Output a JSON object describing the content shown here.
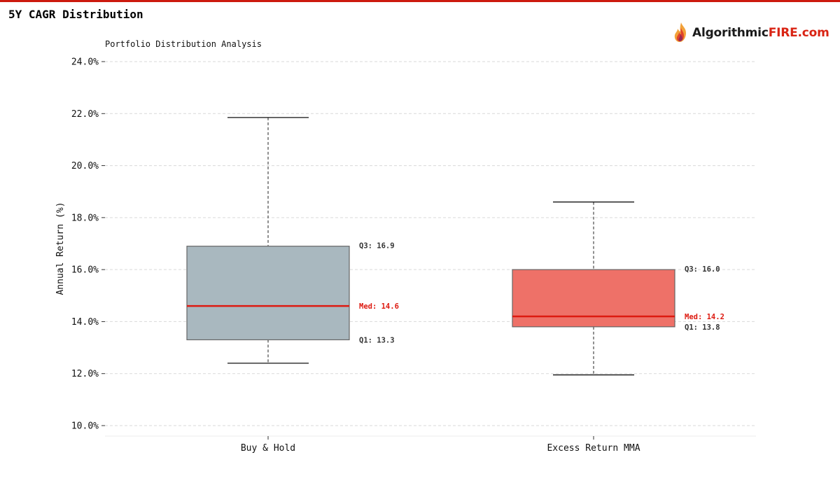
{
  "page": {
    "title": "5Y CAGR Distribution",
    "logo_main": "Algorithmic",
    "logo_accent": "FIRE.com",
    "accent_color": "#cc1a0e"
  },
  "chart_data": {
    "type": "box",
    "title": "Portfolio Distribution Analysis",
    "xlabel": "",
    "ylabel": "Annual Return (%)",
    "ylim": [
      9.6,
      24.0
    ],
    "yticks": [
      10,
      12,
      14,
      16,
      18,
      20,
      22,
      24
    ],
    "ytick_labels": [
      "10.0%",
      "12.0%",
      "14.0%",
      "16.0%",
      "18.0%",
      "20.0%",
      "22.0%",
      "24.0%"
    ],
    "grid": true,
    "categories": [
      "Buy & Hold",
      "Excess Return MMA"
    ],
    "boxes": [
      {
        "name": "Buy & Hold",
        "whisker_low": 12.4,
        "q1": 13.3,
        "median": 14.6,
        "q3": 16.9,
        "whisker_high": 21.85,
        "color": "#a9b8bf",
        "q3_label": "Q3: 16.9",
        "median_label": "Med: 14.6",
        "q1_label": "Q1: 13.3"
      },
      {
        "name": "Excess Return MMA",
        "whisker_low": 11.95,
        "q1": 13.8,
        "median": 14.2,
        "q3": 16.0,
        "whisker_high": 18.6,
        "color": "#ee7168",
        "q3_label": "Q3: 16.0",
        "median_label": "Med: 14.2",
        "q1_label": "Q1: 13.8"
      }
    ],
    "median_color": "#dd1a10"
  }
}
